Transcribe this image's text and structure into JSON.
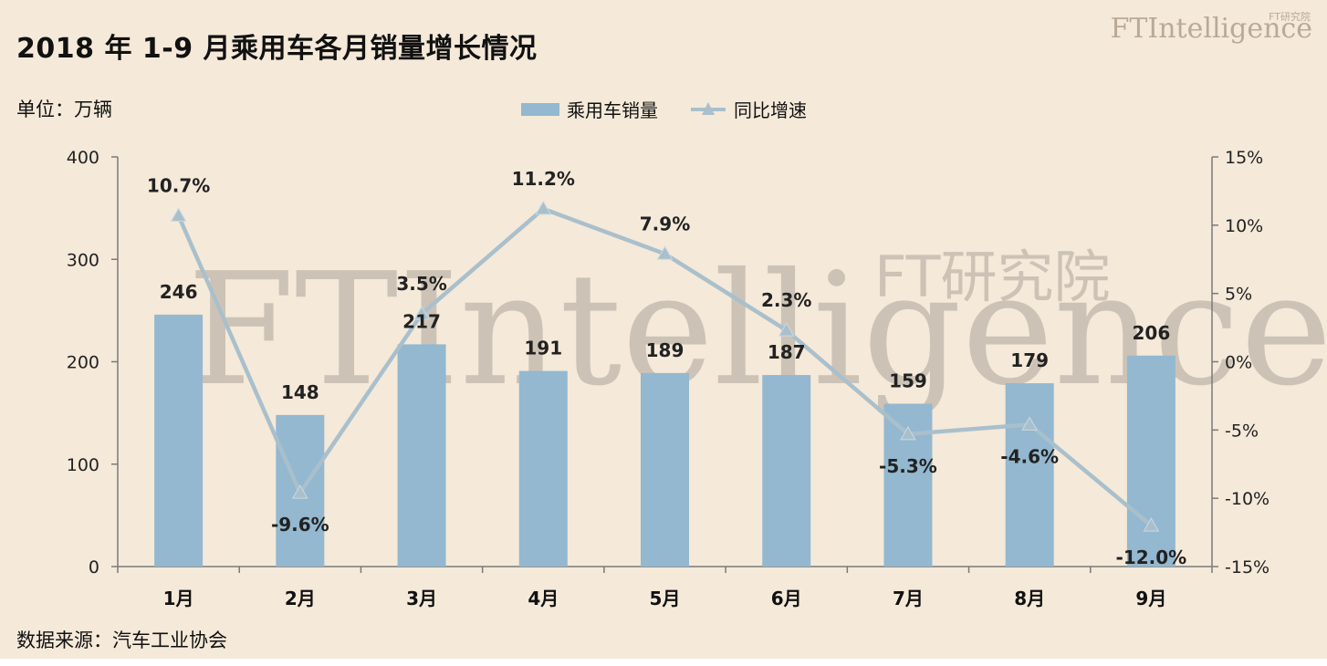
{
  "header": {
    "title": "2018 年 1-9 月乘用车各月销量增长情况",
    "brand": "FTIntelligence",
    "brand_small": "FT研究院"
  },
  "unit_label": "单位：万辆",
  "source_label": "数据来源：汽车工业协会",
  "watermark": {
    "main": "FTIntelligence",
    "sub": "FT研究院"
  },
  "colors": {
    "background": "#f5e9d9",
    "bar": "#93b8d0",
    "line": "#a9c0cc",
    "axis": "#7a7a7a"
  },
  "chart_data": {
    "type": "bar",
    "categories": [
      "1月",
      "2月",
      "3月",
      "4月",
      "5月",
      "6月",
      "7月",
      "8月",
      "9月"
    ],
    "series": [
      {
        "name": "乘用车销量",
        "type": "bar",
        "axis": "left",
        "values": [
          246,
          148,
          217,
          191,
          189,
          187,
          159,
          179,
          206
        ],
        "labels": [
          "246",
          "148",
          "217",
          "191",
          "189",
          "187",
          "159",
          "179",
          "206"
        ]
      },
      {
        "name": "同比增速",
        "type": "line",
        "axis": "right",
        "marker": "triangle",
        "values": [
          10.7,
          -9.6,
          3.5,
          11.2,
          7.9,
          2.3,
          -5.3,
          -4.6,
          -12.0
        ],
        "labels": [
          "10.7%",
          "-9.6%",
          "3.5%",
          "11.2%",
          "7.9%",
          "2.3%",
          "-5.3%",
          "-4.6%",
          "-12.0%"
        ]
      }
    ],
    "left_axis": {
      "ylim": [
        0,
        400
      ],
      "ticks": [
        0,
        100,
        200,
        300,
        400
      ],
      "tick_labels": [
        "0",
        "100",
        "200",
        "300",
        "400"
      ]
    },
    "right_axis": {
      "ylim": [
        -15,
        15
      ],
      "ticks": [
        -15,
        -10,
        -5,
        0,
        5,
        10,
        15
      ],
      "tick_labels": [
        "-15%",
        "-10%",
        "-5%",
        "0%",
        "5%",
        "10%",
        "15%"
      ]
    },
    "legend_position": "top-center",
    "grid": false
  }
}
